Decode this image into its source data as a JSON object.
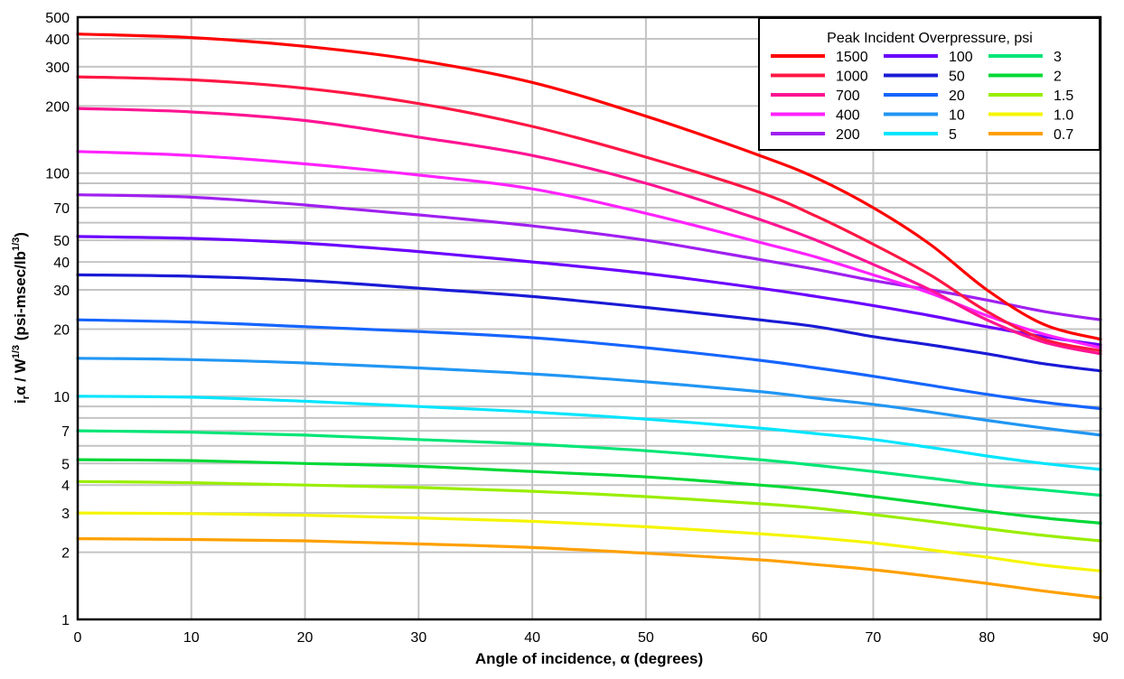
{
  "chart_data": {
    "type": "line",
    "xlabel": "Angle of incidence, α (degrees)",
    "ylabel": "iᵣα / W¹ᐟ³ (psi-msec/lb¹ᐟ³)",
    "ylabel_parts": {
      "a": "i",
      "sub": "r",
      "b": "α / W",
      "sup1": "1/3",
      "c": " (psi-msec/lb",
      "sup2": "1/3",
      "d": ")"
    },
    "xlim": [
      0,
      90
    ],
    "ylim": [
      1,
      500
    ],
    "yscale": "log",
    "grid": true,
    "x_ticks": [
      "0",
      "10",
      "20",
      "30",
      "40",
      "50",
      "60",
      "70",
      "80",
      "90"
    ],
    "y_ticks": [
      "1",
      "2",
      "3",
      "4",
      "5",
      "7",
      "10",
      "20",
      "30",
      "40",
      "50",
      "70",
      "100",
      "200",
      "300",
      "400",
      "500"
    ],
    "y_minor_grid": [
      6,
      8,
      9,
      60,
      80,
      90
    ],
    "legend": {
      "title": "Peak Incident Overpressure, psi",
      "position": "top-right",
      "columns": 3
    },
    "x": [
      0,
      10,
      20,
      30,
      40,
      50,
      60,
      65,
      70,
      75,
      80,
      85,
      90
    ],
    "series": [
      {
        "name": "1500",
        "color": "#ff0000",
        "values": [
          420,
          405,
          370,
          320,
          255,
          180,
          120,
          95,
          70,
          48,
          30,
          21,
          18
        ]
      },
      {
        "name": "1000",
        "color": "#ff1744",
        "values": [
          270,
          262,
          240,
          205,
          162,
          118,
          82,
          64,
          48,
          35,
          24,
          18,
          16
        ]
      },
      {
        "name": "700",
        "color": "#ff1493",
        "values": [
          195,
          188,
          172,
          145,
          120,
          90,
          62,
          50,
          39,
          30,
          22,
          17.5,
          15.5
        ]
      },
      {
        "name": "400",
        "color": "#ff22ff",
        "values": [
          125,
          120,
          110,
          98,
          85,
          66,
          49,
          42,
          35,
          29,
          23,
          19,
          16.5
        ]
      },
      {
        "name": "200",
        "color": "#a020f0",
        "values": [
          80,
          78,
          72,
          65,
          58,
          50,
          41,
          37,
          33,
          30,
          27,
          24,
          22
        ]
      },
      {
        "name": "100",
        "color": "#6a00ff",
        "values": [
          52,
          51,
          48.5,
          44.5,
          40,
          35.5,
          30.5,
          28,
          25.5,
          23,
          20.5,
          18.5,
          17
        ]
      },
      {
        "name": "50",
        "color": "#1a1ad6",
        "values": [
          35,
          34.5,
          33,
          30.5,
          28,
          25,
          22,
          20.5,
          18.5,
          17,
          15.5,
          14,
          13
        ]
      },
      {
        "name": "20",
        "color": "#1565ff",
        "values": [
          22,
          21.5,
          20.5,
          19.5,
          18.3,
          16.5,
          14.5,
          13.4,
          12.3,
          11.2,
          10.2,
          9.4,
          8.8
        ]
      },
      {
        "name": "10",
        "color": "#2196f3",
        "values": [
          14.8,
          14.6,
          14.1,
          13.4,
          12.6,
          11.6,
          10.5,
          9.8,
          9.2,
          8.5,
          7.8,
          7.2,
          6.7
        ]
      },
      {
        "name": "5",
        "color": "#00e5ff",
        "values": [
          10,
          9.9,
          9.5,
          9,
          8.5,
          7.9,
          7.2,
          6.8,
          6.4,
          5.9,
          5.4,
          5,
          4.7
        ]
      },
      {
        "name": "3",
        "color": "#00e676",
        "values": [
          7,
          6.9,
          6.7,
          6.4,
          6.1,
          5.7,
          5.2,
          4.9,
          4.6,
          4.3,
          4,
          3.8,
          3.6
        ]
      },
      {
        "name": "2",
        "color": "#00d936",
        "values": [
          5.2,
          5.15,
          5,
          4.85,
          4.6,
          4.35,
          4,
          3.8,
          3.55,
          3.3,
          3.05,
          2.85,
          2.7
        ]
      },
      {
        "name": "1.5",
        "color": "#99ee00",
        "values": [
          4.15,
          4.1,
          4,
          3.9,
          3.75,
          3.55,
          3.3,
          3.15,
          2.95,
          2.75,
          2.55,
          2.38,
          2.25
        ]
      },
      {
        "name": "1.0",
        "color": "#f5f500",
        "values": [
          3,
          2.98,
          2.93,
          2.85,
          2.75,
          2.6,
          2.42,
          2.32,
          2.2,
          2.05,
          1.9,
          1.75,
          1.65
        ]
      },
      {
        "name": "0.7",
        "color": "#ffa000",
        "values": [
          2.3,
          2.28,
          2.25,
          2.18,
          2.1,
          1.98,
          1.85,
          1.76,
          1.67,
          1.56,
          1.45,
          1.34,
          1.25
        ]
      }
    ]
  }
}
